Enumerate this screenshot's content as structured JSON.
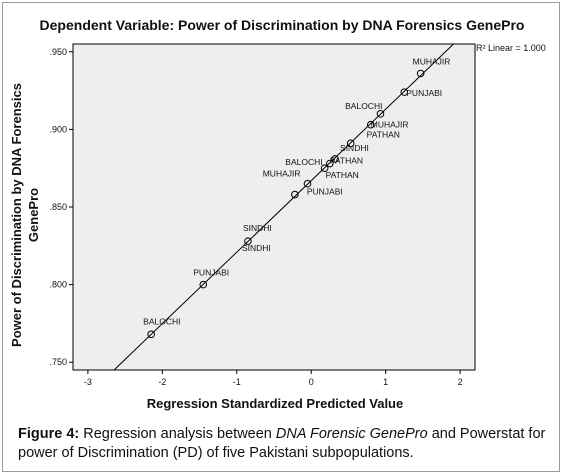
{
  "chart_data": {
    "type": "scatter",
    "title": "Dependent Variable: Power of Discrimination by DNA Forensics GenePro",
    "xlabel": "Regression Standardized Predicted Value",
    "ylabel": "Power of Discrimination by DNA Forensics GenePro",
    "xlim": [
      -3.2,
      2.2
    ],
    "ylim": [
      0.745,
      0.955
    ],
    "x_ticks": [
      -3,
      -2,
      -1,
      0,
      1,
      2
    ],
    "x_tick_labels": [
      "-3",
      "-2",
      "-1",
      "0",
      "1",
      "2"
    ],
    "y_ticks": [
      0.75,
      0.8,
      0.85,
      0.9,
      0.95
    ],
    "y_tick_labels": [
      ".750",
      ".800",
      ".850",
      ".900",
      ".950"
    ],
    "grid": false,
    "fit_line": {
      "label": "R² Linear = 1.000",
      "x_from": -2.85,
      "x_to": 2.2
    },
    "points": [
      {
        "x": -2.15,
        "y": 0.768,
        "label": "BALOCHI"
      },
      {
        "x": -1.45,
        "y": 0.8,
        "label": "PUNJABI"
      },
      {
        "x": -0.85,
        "y": 0.828,
        "label": "SINDHI"
      },
      {
        "x": -0.22,
        "y": 0.858,
        "label": "PUNJABI"
      },
      {
        "x": -0.05,
        "y": 0.865,
        "label": "MUHAJIR"
      },
      {
        "x": 0.18,
        "y": 0.875,
        "label": "BALOCHI"
      },
      {
        "x": 0.25,
        "y": 0.878,
        "label": "PATHAN"
      },
      {
        "x": 0.32,
        "y": 0.881,
        "label": "SINDHI"
      },
      {
        "x": 0.53,
        "y": 0.891,
        "label": "PATHAN"
      },
      {
        "x": 0.8,
        "y": 0.903,
        "label": "MUHAJIR"
      },
      {
        "x": 0.93,
        "y": 0.91,
        "label": "BALOCHI"
      },
      {
        "x": 1.25,
        "y": 0.924,
        "label": "PUNJABI"
      },
      {
        "x": 1.47,
        "y": 0.936,
        "label": "MUHAJIR"
      }
    ],
    "extra_labels": [
      {
        "x": -0.85,
        "y": 0.828,
        "label": "SINDHI"
      },
      {
        "x": 0.18,
        "y": 0.875,
        "label": "PATHAN"
      }
    ]
  },
  "caption": {
    "lead": "Figure 4:",
    "text_1": " Regression analysis between ",
    "italic": "DNA Forensic GenePro",
    "text_2": " and Powerstat for power of Discrimination (PD) of five Pakistani subpopulations."
  }
}
